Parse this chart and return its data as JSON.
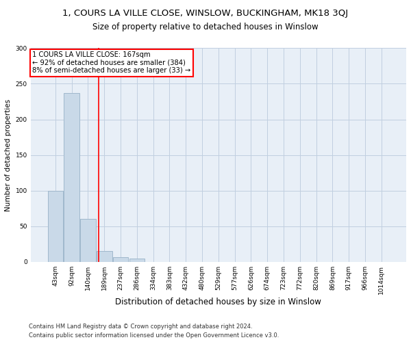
{
  "title": "1, COURS LA VILLE CLOSE, WINSLOW, BUCKINGHAM, MK18 3QJ",
  "subtitle": "Size of property relative to detached houses in Winslow",
  "xlabel": "Distribution of detached houses by size in Winslow",
  "ylabel": "Number of detached properties",
  "footnote1": "Contains HM Land Registry data © Crown copyright and database right 2024.",
  "footnote2": "Contains public sector information licensed under the Open Government Licence v3.0.",
  "bin_labels": [
    "43sqm",
    "92sqm",
    "140sqm",
    "189sqm",
    "237sqm",
    "286sqm",
    "334sqm",
    "383sqm",
    "432sqm",
    "480sqm",
    "529sqm",
    "577sqm",
    "626sqm",
    "674sqm",
    "723sqm",
    "772sqm",
    "820sqm",
    "869sqm",
    "917sqm",
    "966sqm",
    "1014sqm"
  ],
  "bar_values": [
    100,
    237,
    60,
    15,
    6,
    4,
    0,
    0,
    0,
    0,
    0,
    0,
    0,
    0,
    0,
    0,
    0,
    0,
    0,
    0,
    0
  ],
  "bar_color": "#c9d9e8",
  "bar_edge_color": "#a0b8cc",
  "property_line_x": 2.65,
  "property_line_color": "red",
  "annotation_text": "1 COURS LA VILLE CLOSE: 167sqm\n← 92% of detached houses are smaller (384)\n8% of semi-detached houses are larger (33) →",
  "annotation_box_color": "red",
  "ylim": [
    0,
    300
  ],
  "yticks": [
    0,
    50,
    100,
    150,
    200,
    250,
    300
  ],
  "grid_color": "#c0cfe0",
  "background_color": "#e8eff7",
  "title_fontsize": 9.5,
  "subtitle_fontsize": 8.5,
  "ylabel_fontsize": 7.5,
  "xlabel_fontsize": 8.5,
  "tick_fontsize": 6.5,
  "footnote_fontsize": 6.0
}
